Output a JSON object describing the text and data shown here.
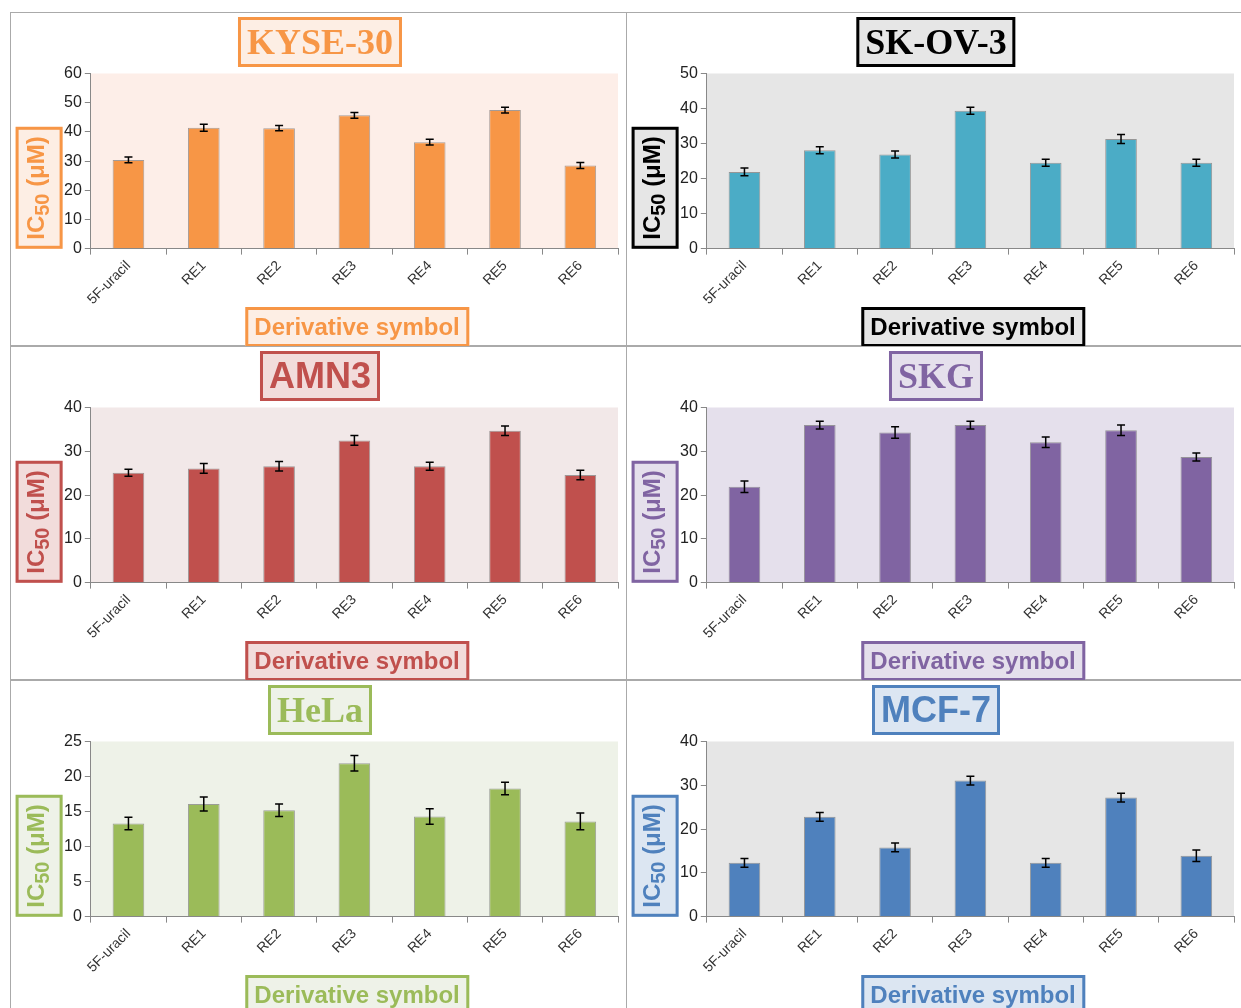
{
  "chart_data": [
    {
      "type": "bar",
      "title": "KYSE-30",
      "xlabel": "Derivative symbol",
      "ylabel": "IC$_{50}$ (μM)",
      "categories": [
        "5F-uracil",
        "RE1",
        "RE2",
        "RE3",
        "RE4",
        "RE5",
        "RE6"
      ],
      "values": [
        30.4,
        41.4,
        41.3,
        45.7,
        36.5,
        47.5,
        28.5
      ],
      "errors": [
        1,
        1.2,
        0.9,
        1,
        1,
        1,
        1
      ],
      "color": "#f79646",
      "ylim": [
        0,
        60
      ],
      "yticks": [
        0,
        10,
        20,
        30,
        40,
        50,
        60
      ],
      "grid": false
    },
    {
      "type": "bar",
      "title": "SK-OV-3",
      "xlabel": "Derivative symbol",
      "ylabel": "IC$_{50}$ (μM)",
      "categories": [
        "5F-uracil",
        "RE1",
        "RE2",
        "RE3",
        "RE4",
        "RE5",
        "RE6"
      ],
      "values": [
        21.9,
        28.1,
        26.9,
        39.4,
        24.5,
        31.3,
        24.5
      ],
      "errors": [
        1.1,
        1,
        1,
        1,
        1,
        1.3,
        1
      ],
      "color": "#4bacc6",
      "ylim": [
        0,
        50
      ],
      "yticks": [
        0,
        10,
        20,
        30,
        40,
        50
      ],
      "grid": false
    },
    {
      "type": "bar",
      "title": "AMN3",
      "xlabel": "Derivative symbol",
      "ylabel": "IC$_{50}$ (μM)",
      "categories": [
        "5F-uracil",
        "RE1",
        "RE2",
        "RE3",
        "RE4",
        "RE5",
        "RE6"
      ],
      "values": [
        25.1,
        26.1,
        26.6,
        32.5,
        26.6,
        34.7,
        24.6
      ],
      "errors": [
        0.8,
        1.1,
        1.1,
        1.1,
        0.9,
        1.1,
        1.1
      ],
      "color": "#c0504d",
      "ylim": [
        0,
        40
      ],
      "yticks": [
        0,
        10,
        20,
        30,
        40
      ],
      "grid": false
    },
    {
      "type": "bar",
      "title": "SKG",
      "xlabel": "Derivative symbol",
      "ylabel": "IC$_{50}$ (μM)",
      "categories": [
        "5F-uracil",
        "RE1",
        "RE2",
        "RE3",
        "RE4",
        "RE5",
        "RE6"
      ],
      "values": [
        21.9,
        36,
        34.3,
        36,
        32.1,
        34.8,
        28.7
      ],
      "errors": [
        1.3,
        0.9,
        1.3,
        0.9,
        1.2,
        1.2,
        0.9
      ],
      "color": "#8064a2",
      "ylim": [
        0,
        40
      ],
      "yticks": [
        0,
        10,
        20,
        30,
        40
      ],
      "grid": false
    },
    {
      "type": "bar",
      "title": "HeLa",
      "xlabel": "Derivative symbol",
      "ylabel": "IC$_{50}$ (μM)",
      "categories": [
        "5F-uracil",
        "RE1",
        "RE2",
        "RE3",
        "RE4",
        "RE5",
        "RE6"
      ],
      "values": [
        13.3,
        16.1,
        15.2,
        21.9,
        14.3,
        18.3,
        13.6
      ],
      "errors": [
        0.9,
        1,
        0.9,
        1.1,
        1.1,
        0.9,
        1.2
      ],
      "color": "#9bbb59",
      "ylim": [
        0,
        25
      ],
      "yticks": [
        0,
        5,
        10,
        15,
        20,
        25
      ],
      "grid": false
    },
    {
      "type": "bar",
      "title": "MCF-7",
      "xlabel": "Derivative symbol",
      "ylabel": "IC$_{50}$ (μM)",
      "categories": [
        "5F-uracil",
        "RE1",
        "RE2",
        "RE3",
        "RE4",
        "RE5",
        "RE6"
      ],
      "values": [
        12.3,
        22.8,
        15.8,
        31.1,
        12.3,
        27.2,
        13.9
      ],
      "errors": [
        1,
        1,
        1,
        1,
        1,
        1,
        1.3
      ],
      "color": "#4f81bd",
      "ylim": [
        0,
        40
      ],
      "yticks": [
        0,
        10,
        20,
        30,
        40
      ],
      "grid": false
    }
  ]
}
